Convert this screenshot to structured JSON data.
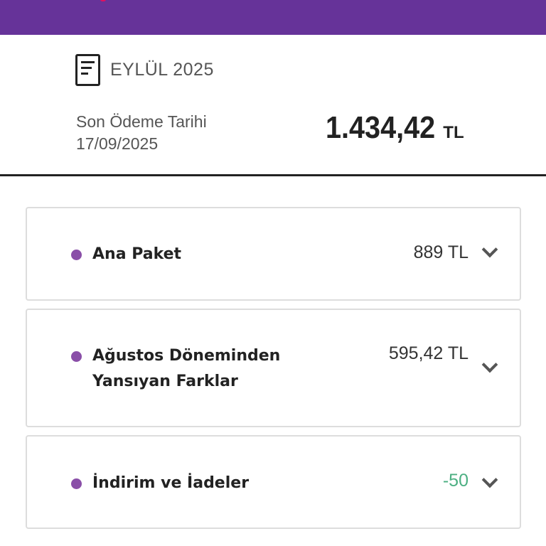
{
  "header": {
    "brand_color": "#663399"
  },
  "summary": {
    "period": "EYLÜL 2025",
    "period_icon": "document-icon",
    "due_label": "Son Ödeme Tarihi",
    "due_date": "17/09/2025",
    "total_amount": "1.434,42",
    "total_currency": "TL"
  },
  "items": [
    {
      "label": "Ana Paket",
      "value": "889 TL",
      "icon": "chevron-down-icon"
    },
    {
      "label": "Ağustos Döneminden Yansıyan Farklar",
      "value": "595,42 TL",
      "icon": "chevron-down-icon"
    },
    {
      "label": "İndirim ve İadeler",
      "value": "-50",
      "value_color": "#4caf82",
      "icon": "chevron-down-icon"
    }
  ]
}
